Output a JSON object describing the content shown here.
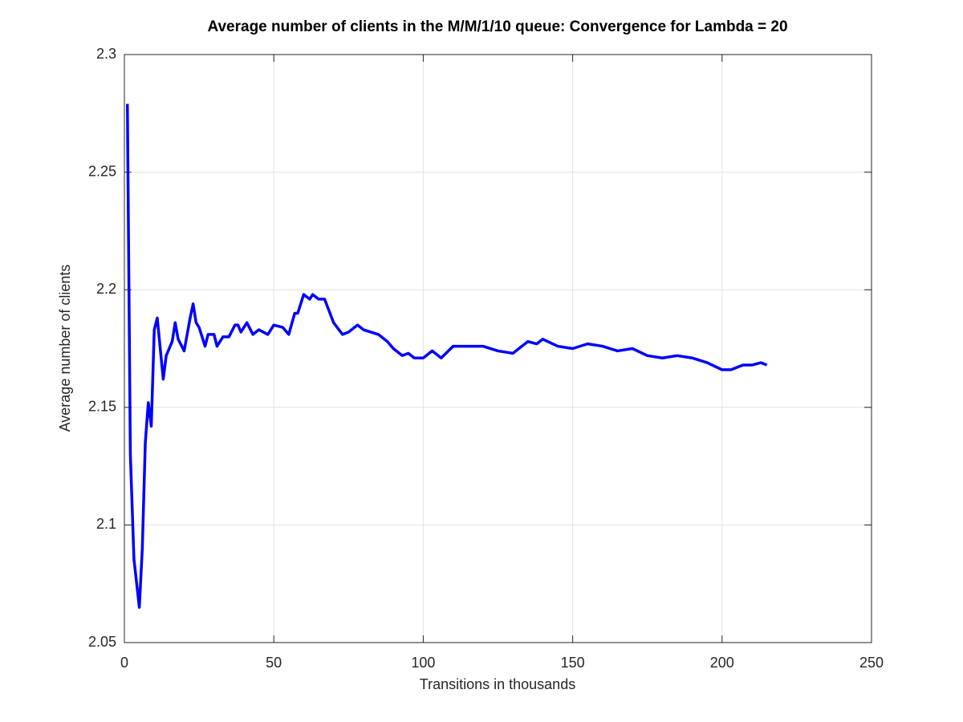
{
  "chart_data": {
    "type": "line",
    "title": "Average number of clients in the M/M/1/10 queue: Convergence for Lambda = 20",
    "x_label": "Transitions in thousands",
    "y_label": "Average number of clients",
    "series": [
      {
        "color": "#0000ff",
        "x": [
          1,
          2,
          3.2,
          5,
          6,
          7,
          8,
          9,
          10,
          11,
          13,
          14,
          16,
          17,
          18,
          20,
          22,
          23,
          24,
          25,
          27,
          28,
          30,
          31,
          33,
          35,
          37,
          38,
          39,
          41,
          43,
          45,
          48,
          50,
          53,
          55,
          57,
          58,
          60,
          62,
          63,
          65,
          67,
          70,
          73,
          75,
          78,
          80,
          85,
          88,
          90,
          93,
          95,
          97,
          100,
          103,
          106,
          110,
          115,
          120,
          125,
          130,
          135,
          138,
          140,
          145,
          150,
          155,
          160,
          165,
          170,
          175,
          180,
          185,
          190,
          195,
          200,
          203,
          207,
          210,
          213,
          215
        ],
        "values": [
          2.279,
          2.13,
          2.0855,
          2.065,
          2.09,
          2.135,
          2.152,
          2.142,
          2.183,
          2.188,
          2.162,
          2.172,
          2.178,
          2.186,
          2.179,
          2.174,
          2.188,
          2.194,
          2.186,
          2.184,
          2.176,
          2.181,
          2.181,
          2.176,
          2.18,
          2.18,
          2.185,
          2.185,
          2.182,
          2.186,
          2.181,
          2.183,
          2.181,
          2.185,
          2.184,
          2.181,
          2.19,
          2.19,
          2.198,
          2.196,
          2.198,
          2.196,
          2.196,
          2.186,
          2.181,
          2.182,
          2.185,
          2.183,
          2.181,
          2.178,
          2.175,
          2.172,
          2.173,
          2.171,
          2.171,
          2.174,
          2.171,
          2.176,
          2.176,
          2.176,
          2.174,
          2.173,
          2.178,
          2.177,
          2.179,
          2.176,
          2.175,
          2.177,
          2.176,
          2.174,
          2.175,
          2.172,
          2.171,
          2.172,
          2.171,
          2.169,
          2.166,
          2.166,
          2.168,
          2.168,
          2.169,
          2.168
        ]
      }
    ],
    "xlim": [
      0,
      250
    ],
    "xticks": [
      0,
      50,
      100,
      150,
      200,
      250
    ],
    "ylim": [
      2.05,
      2.3
    ],
    "yticks": [
      2.05,
      2.1,
      2.15,
      2.2,
      2.25,
      2.3
    ],
    "grid": true
  }
}
